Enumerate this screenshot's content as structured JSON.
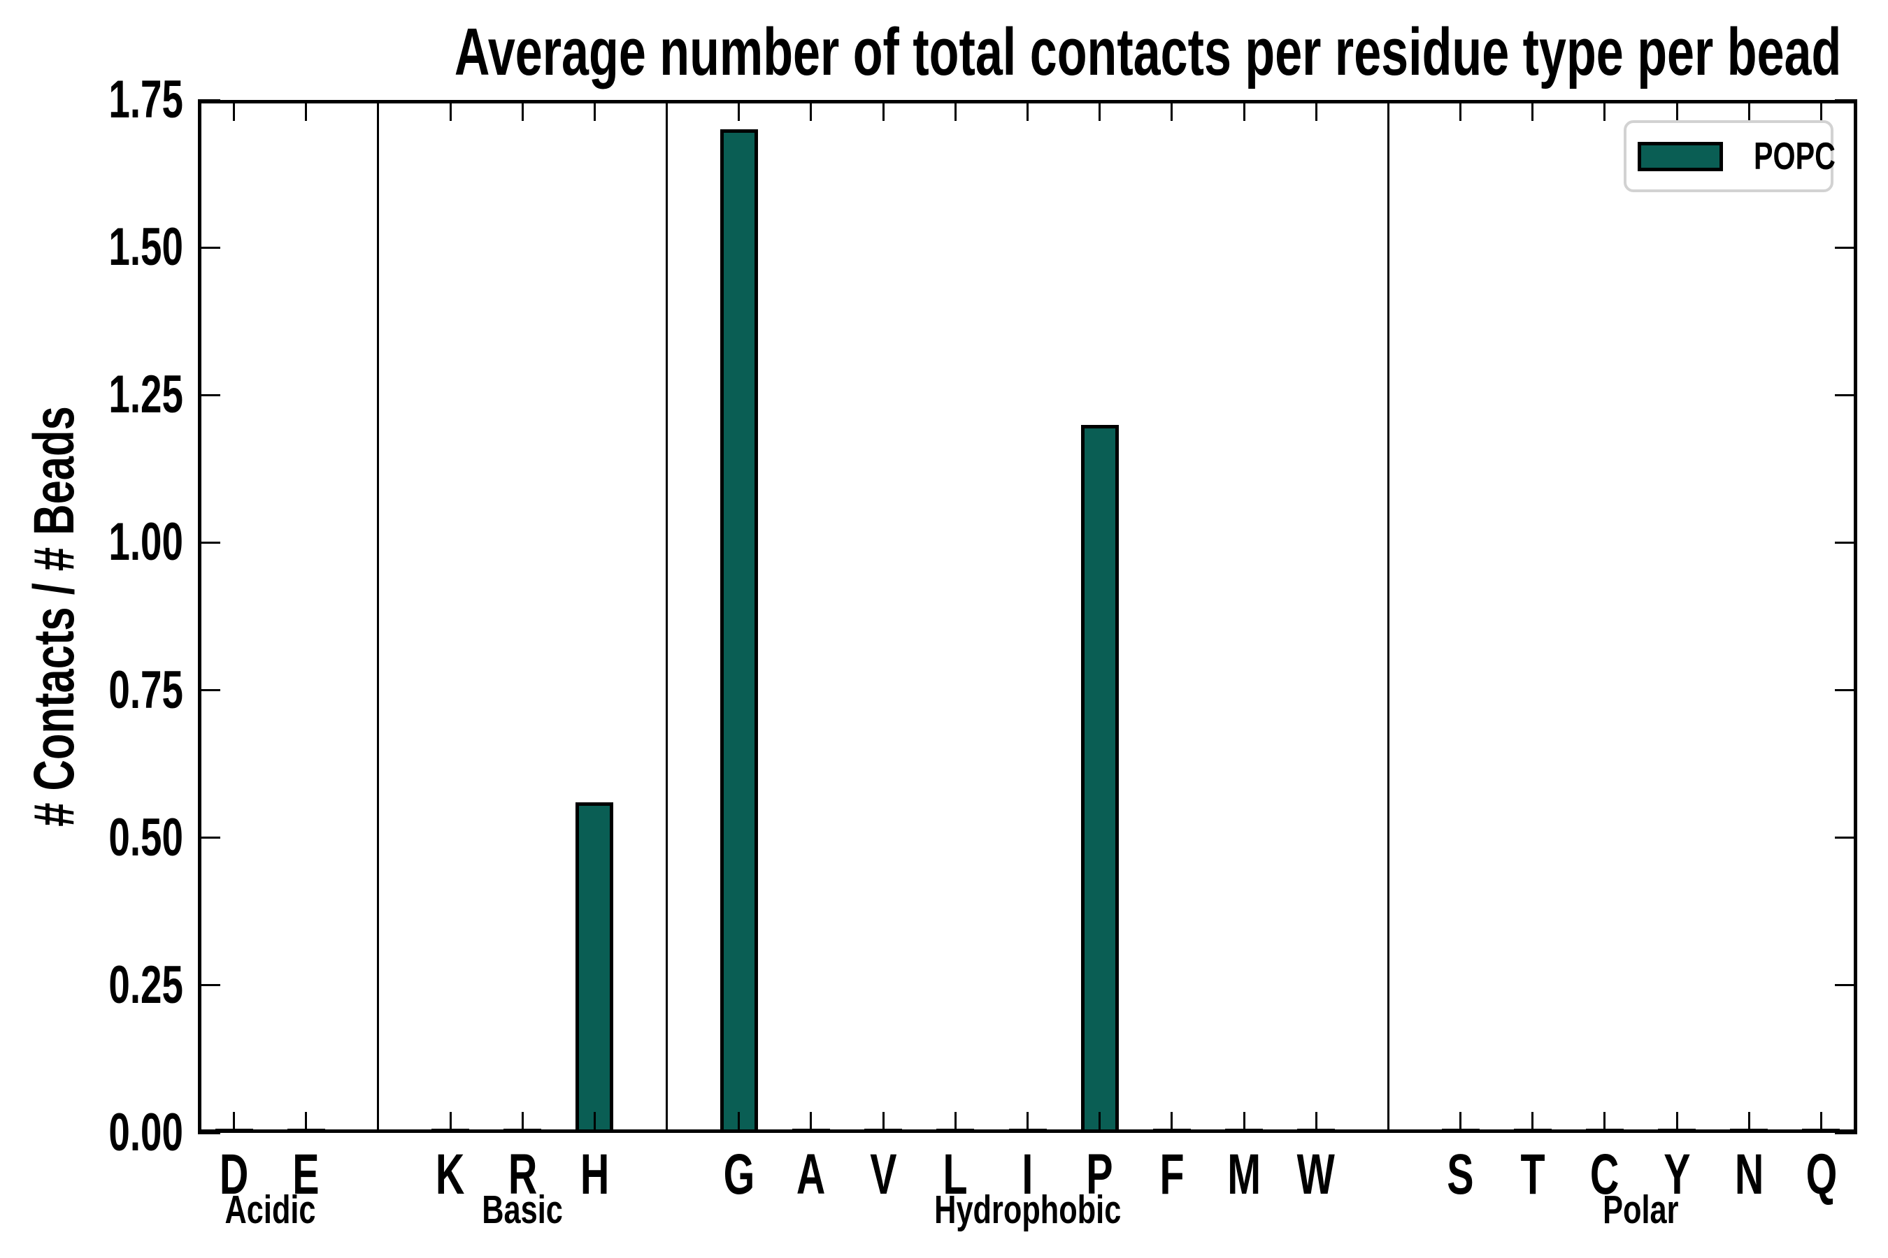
{
  "chart_data": {
    "type": "bar",
    "title": "Average number of total contacts per residue type per bead",
    "ylabel": "# Contacts / # Beads",
    "ylim": [
      0,
      1.75
    ],
    "ytick_labels": [
      "0.00",
      "0.25",
      "0.50",
      "0.75",
      "1.00",
      "1.25",
      "1.50",
      "1.75"
    ],
    "yticks": [
      0.0,
      0.25,
      0.5,
      0.75,
      1.0,
      1.25,
      1.5,
      1.75
    ],
    "grid": false,
    "groups": [
      {
        "label": "Acidic",
        "categories": [
          "D",
          "E"
        ],
        "values": [
          0,
          0
        ]
      },
      {
        "label": "Basic",
        "categories": [
          "K",
          "R",
          "H"
        ],
        "values": [
          0,
          0,
          0.56
        ]
      },
      {
        "label": "Hydrophobic",
        "categories": [
          "G",
          "A",
          "V",
          "L",
          "I",
          "P",
          "F",
          "M",
          "W"
        ],
        "values": [
          1.7,
          0,
          0,
          0,
          0,
          1.2,
          0,
          0,
          0
        ]
      },
      {
        "label": "Polar",
        "categories": [
          "S",
          "T",
          "C",
          "Y",
          "N",
          "Q"
        ],
        "values": [
          0,
          0,
          0,
          0,
          0,
          0
        ]
      }
    ],
    "legend": {
      "label": "POPC",
      "position": "upper right"
    },
    "bar_color": "#0a5e54",
    "bar_edge_color": "#000000",
    "separator_color": "#000000"
  }
}
